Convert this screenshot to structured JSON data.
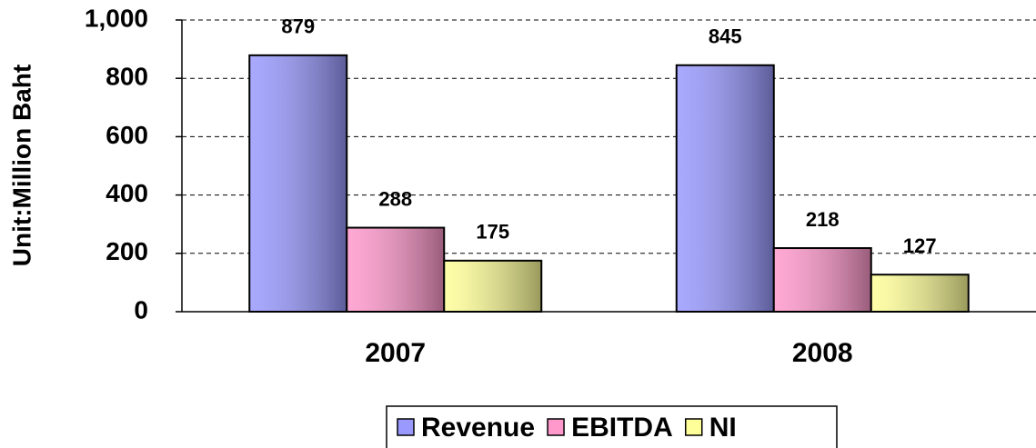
{
  "chart_data": {
    "type": "bar",
    "y_label": "Unit:Million Baht",
    "categories": [
      "2007",
      "2008"
    ],
    "series": [
      {
        "name": "Revenue",
        "color": "#9999ff",
        "values": [
          879,
          845
        ]
      },
      {
        "name": "EBITDA",
        "color": "#ff99cc",
        "values": [
          288,
          218
        ]
      },
      {
        "name": "NI",
        "color": "#ffff99",
        "values": [
          175,
          127
        ]
      }
    ],
    "ylim": [
      0,
      1000
    ],
    "yticks": [
      0,
      200,
      400,
      600,
      800,
      {
        "value": 1000,
        "label": "1,000"
      }
    ],
    "grid": true,
    "legend": "bottom"
  }
}
